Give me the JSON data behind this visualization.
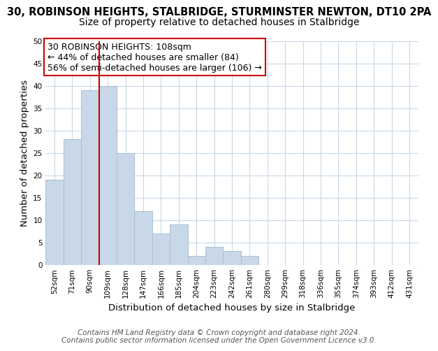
{
  "title": "30, ROBINSON HEIGHTS, STALBRIDGE, STURMINSTER NEWTON, DT10 2PA",
  "subtitle": "Size of property relative to detached houses in Stalbridge",
  "xlabel": "Distribution of detached houses by size in Stalbridge",
  "ylabel": "Number of detached properties",
  "bar_labels": [
    "52sqm",
    "71sqm",
    "90sqm",
    "109sqm",
    "128sqm",
    "147sqm",
    "166sqm",
    "185sqm",
    "204sqm",
    "223sqm",
    "242sqm",
    "261sqm",
    "280sqm",
    "299sqm",
    "318sqm",
    "336sqm",
    "355sqm",
    "374sqm",
    "393sqm",
    "412sqm",
    "431sqm"
  ],
  "bar_values": [
    19,
    28,
    39,
    40,
    25,
    12,
    7,
    9,
    2,
    4,
    3,
    2,
    0,
    0,
    0,
    0,
    0,
    0,
    0,
    0,
    0
  ],
  "bar_color": "#c8d8e8",
  "bar_edge_color": "#a8c0d4",
  "vline_color": "#cc0000",
  "vline_x_index": 3,
  "annotation_lines": [
    "30 ROBINSON HEIGHTS: 108sqm",
    "← 44% of detached houses are smaller (84)",
    "56% of semi-detached houses are larger (106) →"
  ],
  "annotation_box_color": "#ffffff",
  "annotation_box_edge": "#cc0000",
  "ylim": [
    0,
    50
  ],
  "yticks": [
    0,
    5,
    10,
    15,
    20,
    25,
    30,
    35,
    40,
    45,
    50
  ],
  "footer1": "Contains HM Land Registry data © Crown copyright and database right 2024.",
  "footer2": "Contains public sector information licensed under the Open Government Licence v3.0.",
  "bg_color": "#ffffff",
  "grid_color": "#c8d8e8",
  "title_fontsize": 10.5,
  "subtitle_fontsize": 10,
  "axis_label_fontsize": 9.5,
  "tick_fontsize": 7.5,
  "annotation_fontsize": 9,
  "footer_fontsize": 7.5
}
